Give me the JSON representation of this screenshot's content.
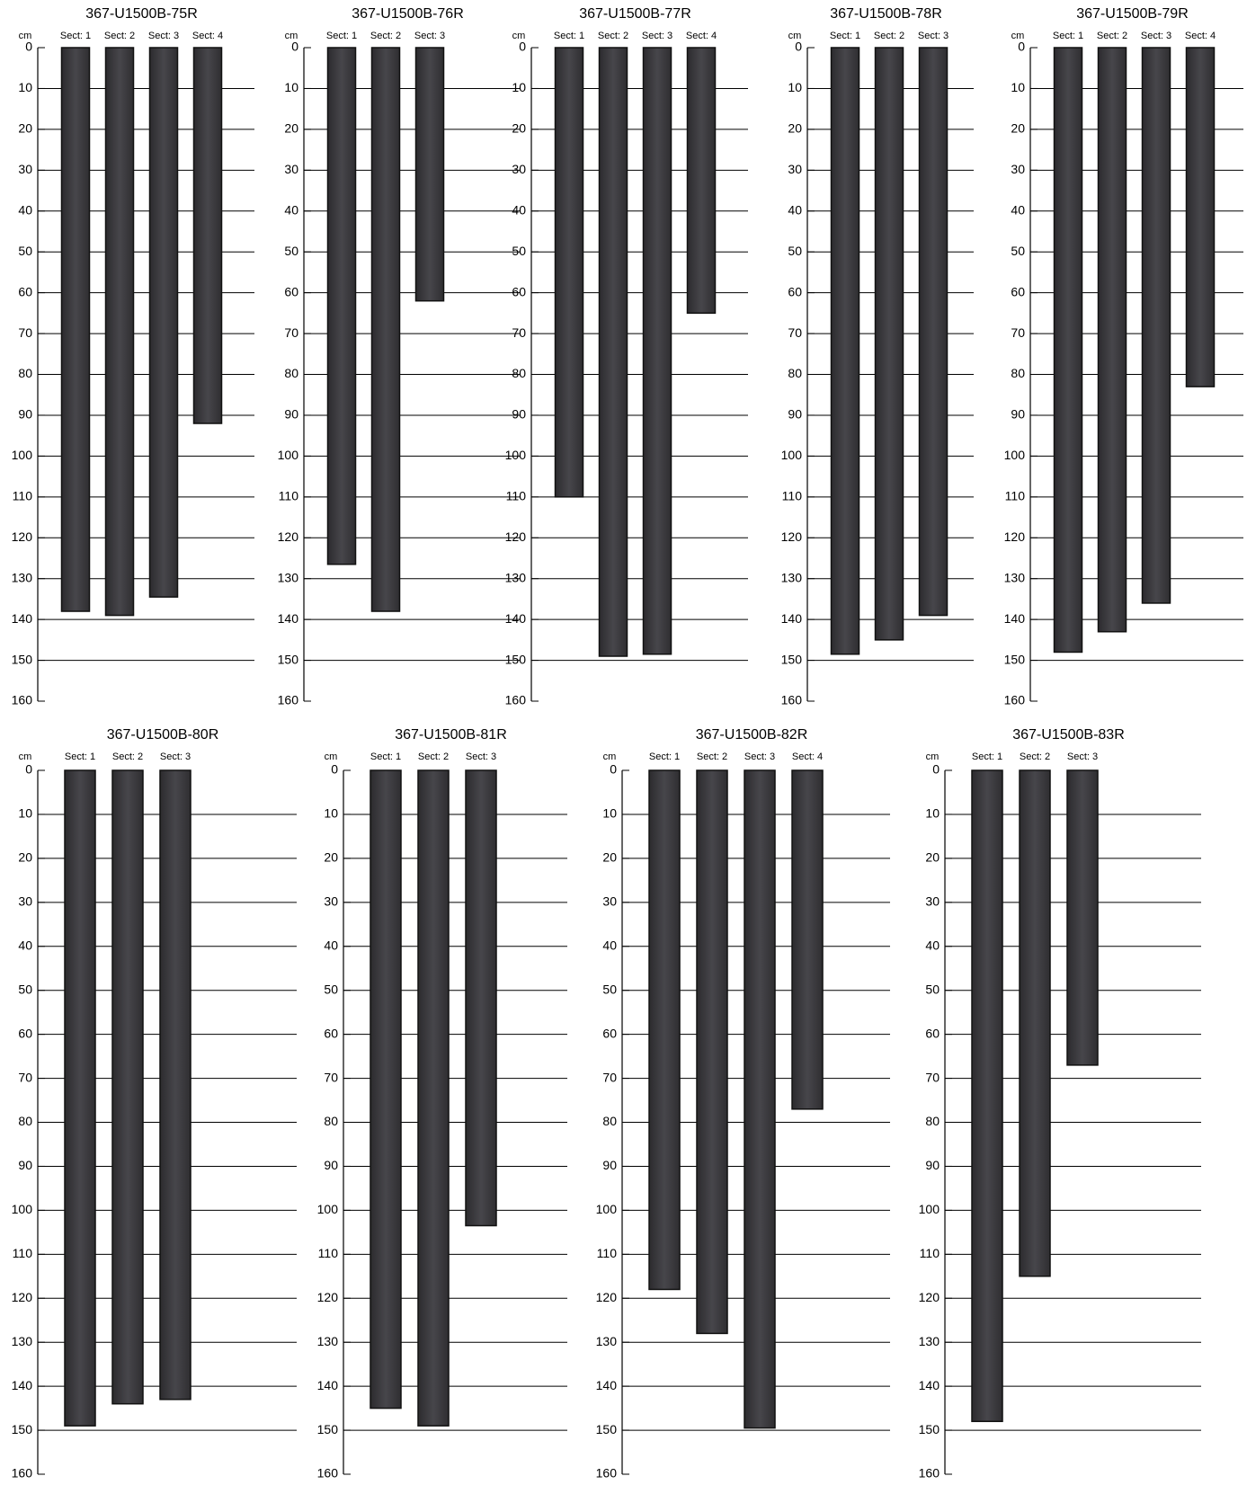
{
  "unit": "cm",
  "ylim": [
    0,
    160
  ],
  "yticks": [
    0,
    10,
    20,
    30,
    40,
    50,
    60,
    70,
    80,
    90,
    100,
    110,
    120,
    130,
    140,
    150,
    160
  ],
  "panels": [
    {
      "title": "367-U1500B-75R",
      "sections": [
        {
          "label": "Sect: 1",
          "length": 138
        },
        {
          "label": "Sect: 2",
          "length": 139
        },
        {
          "label": "Sect: 3",
          "length": 134.5
        },
        {
          "label": "Sect: 4",
          "length": 92
        }
      ]
    },
    {
      "title": "367-U1500B-76R",
      "sections": [
        {
          "label": "Sect: 1",
          "length": 126.5
        },
        {
          "label": "Sect: 2",
          "length": 138
        },
        {
          "label": "Sect: 3",
          "length": 62
        }
      ]
    },
    {
      "title": "367-U1500B-77R",
      "sections": [
        {
          "label": "Sect: 1",
          "length": 110
        },
        {
          "label": "Sect: 2",
          "length": 149
        },
        {
          "label": "Sect: 3",
          "length": 148.5
        },
        {
          "label": "Sect: 4",
          "length": 65
        }
      ]
    },
    {
      "title": "367-U1500B-78R",
      "sections": [
        {
          "label": "Sect: 1",
          "length": 148.5
        },
        {
          "label": "Sect: 2",
          "length": 145
        },
        {
          "label": "Sect: 3",
          "length": 139
        }
      ]
    },
    {
      "title": "367-U1500B-79R",
      "sections": [
        {
          "label": "Sect: 1",
          "length": 148
        },
        {
          "label": "Sect: 2",
          "length": 143
        },
        {
          "label": "Sect: 3",
          "length": 136
        },
        {
          "label": "Sect: 4",
          "length": 83
        }
      ]
    },
    {
      "title": "367-U1500B-80R",
      "sections": [
        {
          "label": "Sect: 1",
          "length": 149
        },
        {
          "label": "Sect: 2",
          "length": 144
        },
        {
          "label": "Sect: 3",
          "length": 143
        }
      ]
    },
    {
      "title": "367-U1500B-81R",
      "sections": [
        {
          "label": "Sect: 1",
          "length": 145
        },
        {
          "label": "Sect: 2",
          "length": 149
        },
        {
          "label": "Sect: 3",
          "length": 103.5
        }
      ]
    },
    {
      "title": "367-U1500B-82R",
      "sections": [
        {
          "label": "Sect: 1",
          "length": 118
        },
        {
          "label": "Sect: 2",
          "length": 128
        },
        {
          "label": "Sect: 3",
          "length": 149.5
        },
        {
          "label": "Sect: 4",
          "length": 77
        }
      ]
    },
    {
      "title": "367-U1500B-83R",
      "sections": [
        {
          "label": "Sect: 1",
          "length": 148
        },
        {
          "label": "Sect: 2",
          "length": 115
        },
        {
          "label": "Sect: 3",
          "length": 67
        }
      ]
    }
  ]
}
